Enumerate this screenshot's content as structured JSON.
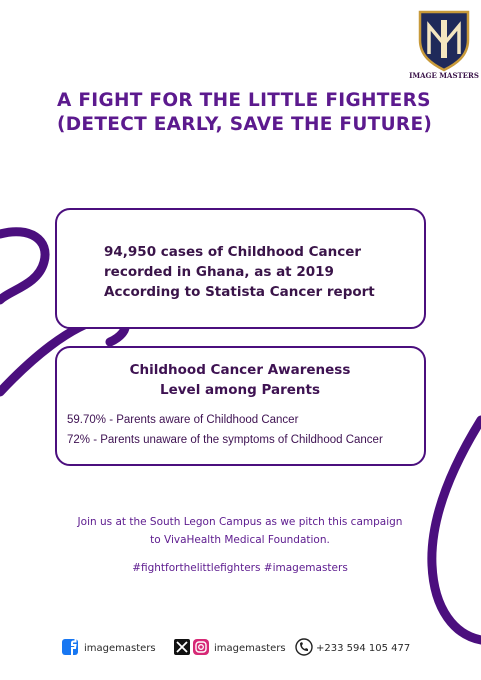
{
  "logo": {
    "name": "IMAGE MASTERS"
  },
  "title": {
    "lines": [
      "A FIGHT FOR THE LITTLE FIGHTERS",
      "(DETECT EARLY,  SAVE THE FUTURE)"
    ]
  },
  "report_box": {
    "lines": [
      "94,950 cases of Childhood Cancer",
      "recorded in Ghana, as at 2019",
      "According to Statista Cancer report"
    ]
  },
  "awareness_box": {
    "heading": [
      "Childhood Cancer Awareness",
      "Level among Parents"
    ],
    "stats": [
      "59.70% - Parents aware of Childhood Cancer",
      "72% - Parents unaware of the symptoms of Childhood Cancer"
    ]
  },
  "invitation": {
    "lines": [
      "Join us at the South Legon Campus as we pitch this campaign",
      "to VivaHealth Medical Foundation."
    ]
  },
  "hashtags": "#fightforthelittlefighters #imagemasters",
  "footer": {
    "facebook": "imagemasters",
    "x_instagram": "imagemasters",
    "phone": "+233 594 105 477"
  }
}
